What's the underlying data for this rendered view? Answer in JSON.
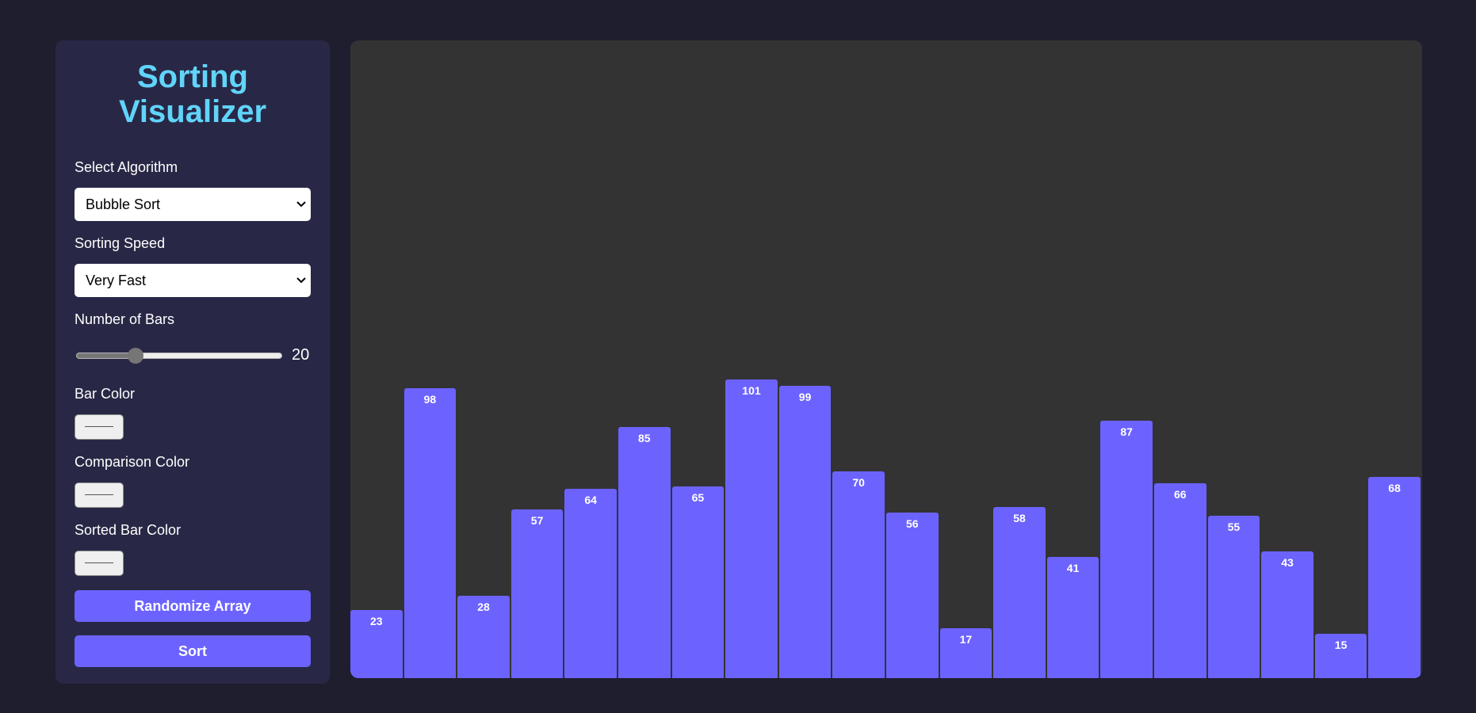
{
  "sidebar": {
    "title": "Sorting Visualizer",
    "algorithm": {
      "label": "Select Algorithm",
      "selected": "Bubble Sort"
    },
    "speed": {
      "label": "Sorting Speed",
      "selected": "Very Fast"
    },
    "bars": {
      "label": "Number of Bars",
      "value": "20",
      "slider_fraction": 0.29
    },
    "bar_color": {
      "label": "Bar Color"
    },
    "comparison_color": {
      "label": "Comparison Color"
    },
    "sorted_color": {
      "label": "Sorted Bar Color"
    },
    "randomize_label": "Randomize Array",
    "sort_label": "Sort"
  },
  "colors": {
    "bar": "#6c63ff",
    "title": "#61d4fa",
    "panel": "#282846",
    "canvas": "#333333"
  },
  "chart_data": {
    "type": "bar",
    "values": [
      23,
      98,
      28,
      57,
      64,
      85,
      65,
      101,
      99,
      70,
      56,
      17,
      58,
      41,
      87,
      66,
      55,
      43,
      15,
      68
    ]
  }
}
